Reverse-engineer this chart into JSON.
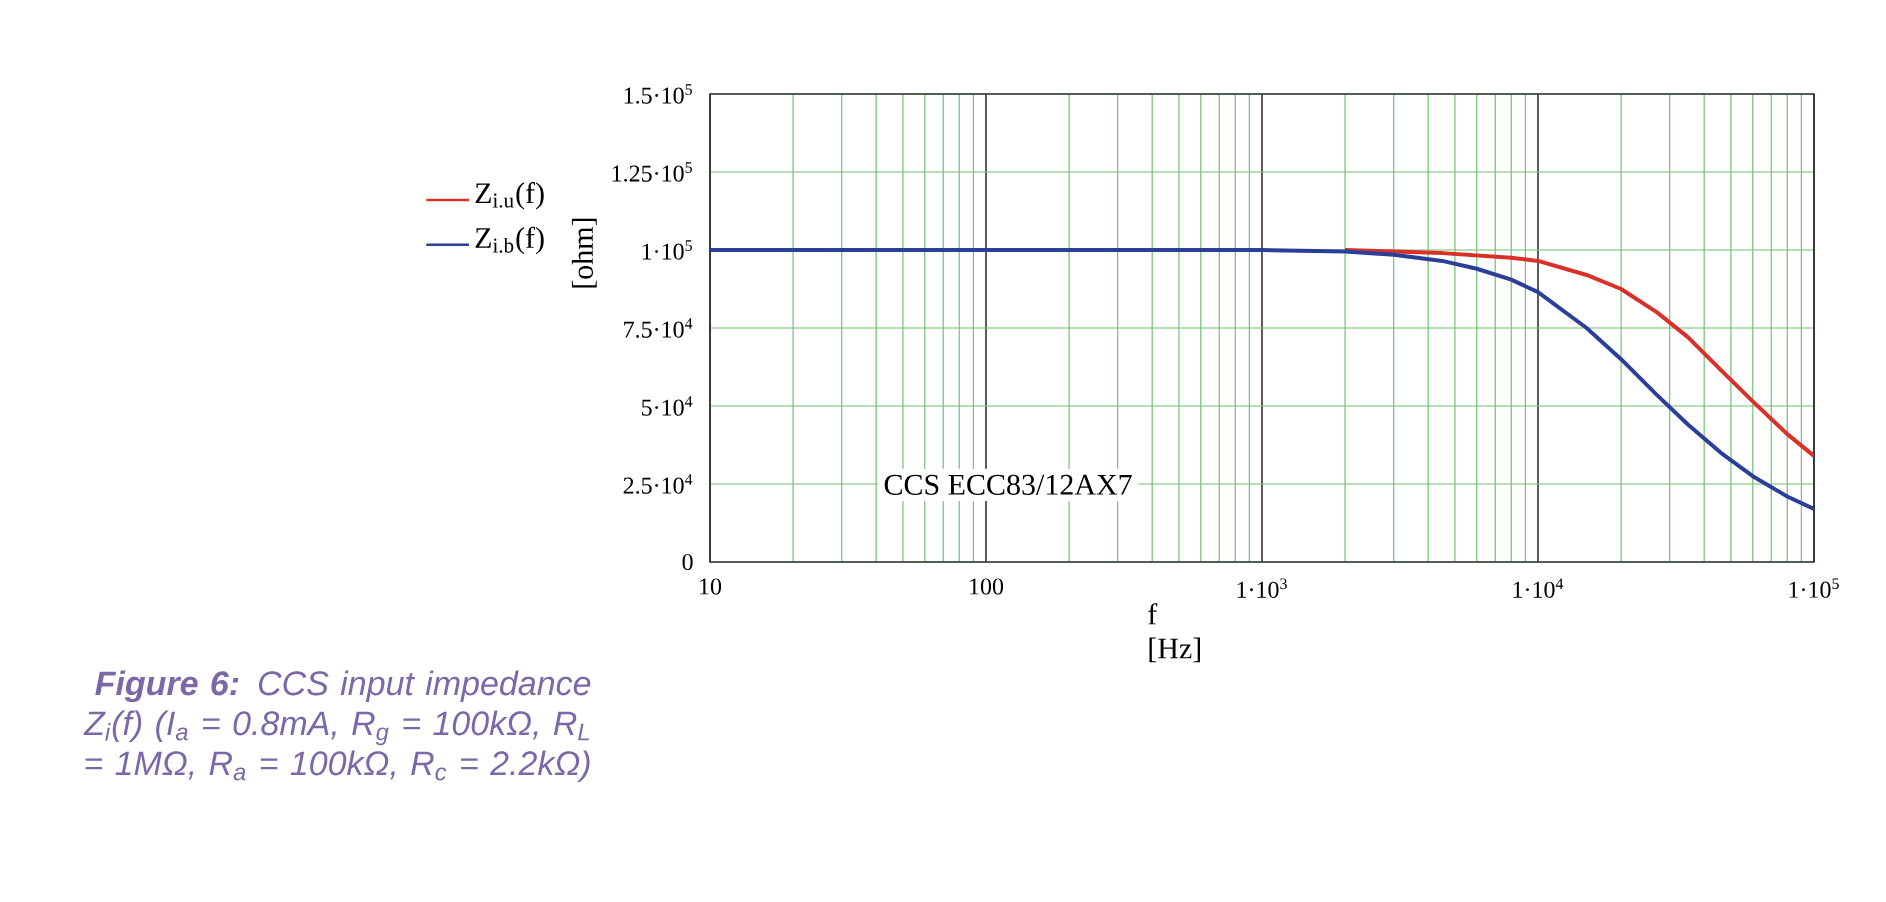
{
  "chart_data": {
    "type": "line",
    "xlabel": "f [Hz]",
    "ylabel": "[ohm]",
    "log": "x",
    "grid": true,
    "legend": "left",
    "xlim": [
      10,
      100000
    ],
    "ylim": [
      0,
      150000
    ],
    "xticks": [
      10,
      100,
      {
        "value": 1000,
        "label": "1·10$^{3}$"
      },
      {
        "value": 10000,
        "label": "1·10$^{4}$"
      },
      {
        "value": 100000,
        "label": "1·10$^{5}$"
      }
    ],
    "yticks": [
      0,
      {
        "value": 25000,
        "label": "2.5·10$^{4}$"
      },
      {
        "value": 50000,
        "label": "5·10$^{4}$"
      },
      {
        "value": 75000,
        "label": "7.5·10$^{4}$"
      },
      {
        "value": 100000,
        "label": "1·10$^{5}$"
      },
      {
        "value": 125000,
        "label": "1.25·10$^{5}$"
      },
      {
        "value": 150000,
        "label": "1.5·10$^{5}$"
      }
    ],
    "series": [
      {
        "name": "Z$_{i.u}$(f)",
        "color": "#d9302a",
        "x": [
          2000,
          4500,
          8000,
          10000,
          15000,
          20000,
          27000,
          35000,
          46000,
          60000,
          80000,
          100000
        ],
        "values": [
          100000,
          99000,
          97500,
          96500,
          92000,
          87500,
          80000,
          72000,
          61500,
          51500,
          41000,
          34000
        ]
      },
      {
        "name": "Z$_{i.b}$(f)",
        "color": "#2b3f99",
        "x": [
          10,
          100,
          1000,
          2000,
          3000,
          4500,
          6000,
          8000,
          10000,
          15000,
          20000,
          27000,
          35000,
          46000,
          60000,
          80000,
          100000
        ],
        "values": [
          100000,
          100000,
          100000,
          99500,
          98500,
          96500,
          94000,
          90500,
          86500,
          75000,
          65000,
          53500,
          44000,
          35000,
          27500,
          21000,
          17000
        ]
      }
    ],
    "annotations": [
      "CCS ECC83/12AX7",
      "**Figure 6:** CCS input impedance Z$_{i}$(f) (I$_{a}$ = 0.8mA, R$_{g}$ = 100kΩ, R$_{L}$ = 1MΩ, R$_{a}$ = 100kΩ, R$_{c}$ = 2.2kΩ)"
    ]
  }
}
